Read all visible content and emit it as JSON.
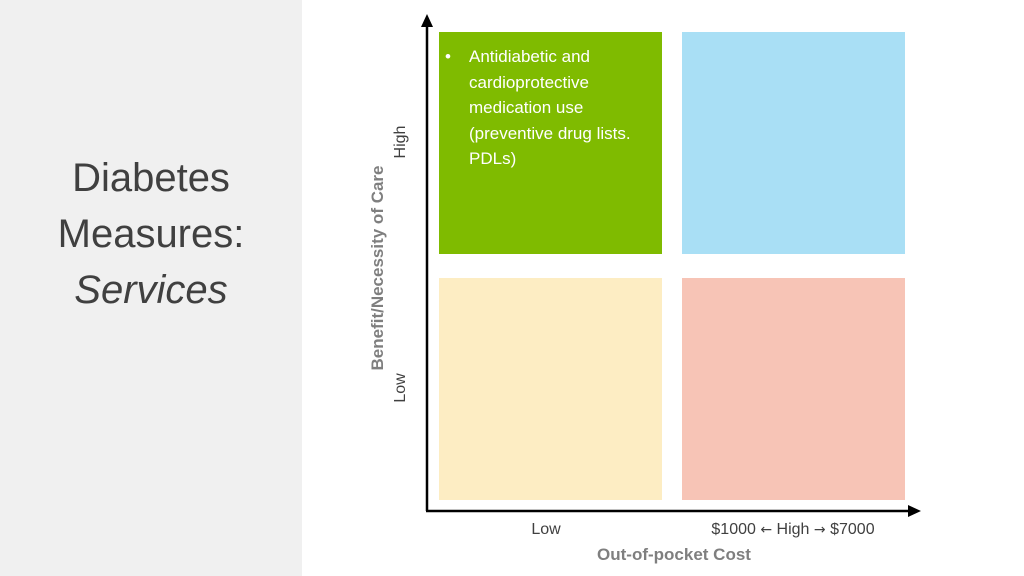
{
  "title": {
    "line1": "Diabetes",
    "line2": "Measures:",
    "line3": "Services"
  },
  "quadrants": {
    "top_left": {
      "color": "#7fbb00",
      "items": [
        "Antidiabetic and cardioprotective medication use (preventive drug lists. PDLs)"
      ]
    },
    "top_right": {
      "color": "#a9dff5"
    },
    "bottom_left": {
      "color": "#fdedc3"
    },
    "bottom_right": {
      "color": "#f7c4b6"
    }
  },
  "y_axis": {
    "label": "Benefit/Necessity of Care",
    "high": "High",
    "low": "Low"
  },
  "x_axis": {
    "label": "Out-of-pocket Cost",
    "low": "Low",
    "high_prefix": "$1000",
    "high_left_arrow": "←",
    "high_word": "High",
    "high_right_arrow": "→",
    "high_suffix": "$7000"
  },
  "colors": {
    "sidebar_bg": "#f0f0f0",
    "axis": "#000000",
    "title_text": "#404040",
    "axis_label_text": "#7f7f7f"
  }
}
